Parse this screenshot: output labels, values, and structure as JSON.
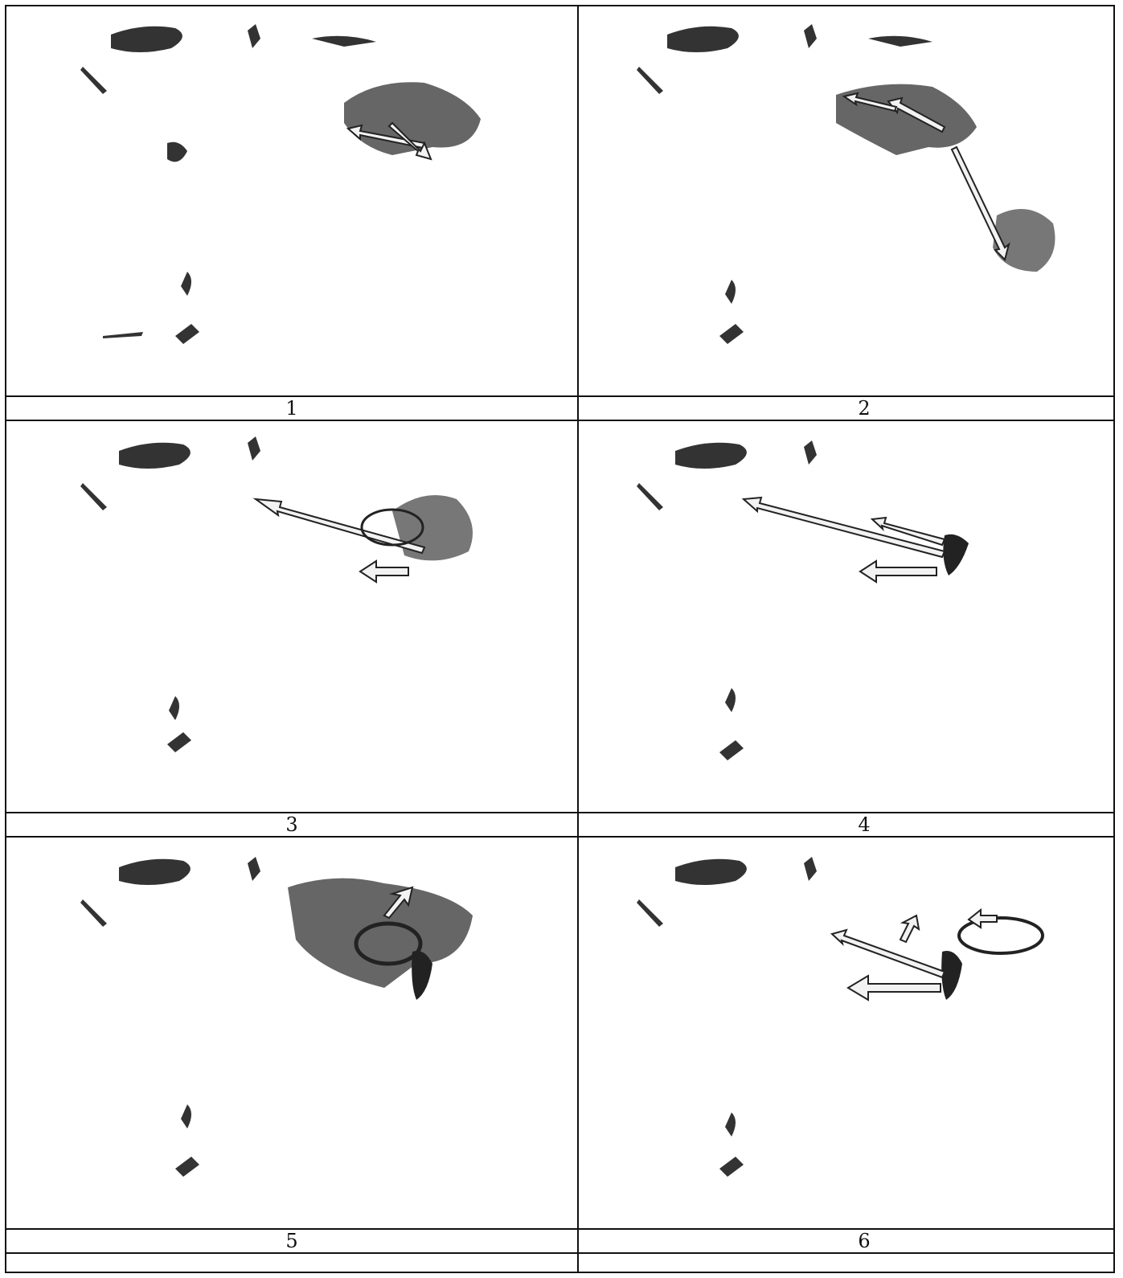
{
  "figure": {
    "panels": [
      {
        "label": "1"
      },
      {
        "label": "2"
      },
      {
        "label": "3"
      },
      {
        "label": "4"
      },
      {
        "label": "5"
      },
      {
        "label": "6"
      }
    ]
  },
  "colors": {
    "land_dark": "#1a1a1a",
    "land_mid": "#555555",
    "region_fill": "#6e6e6e",
    "arrow_stroke": "#222222",
    "arrow_fill": "#f2f2f2",
    "border": "#111111"
  }
}
